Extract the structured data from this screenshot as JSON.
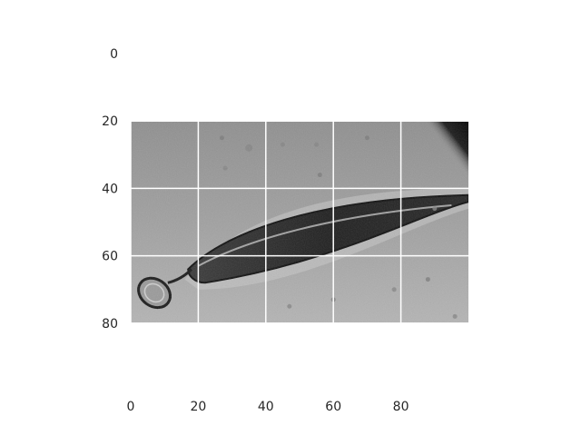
{
  "figure": {
    "kind": "image-plot",
    "colormap": "grayscale",
    "grid": true,
    "grid_color": "#ffffff",
    "background": "#ffffff",
    "text_color": "#262626"
  },
  "x_axis": {
    "range": [
      0,
      100
    ],
    "ticks": [
      {
        "value": 0,
        "label": "0"
      },
      {
        "value": 20,
        "label": "20"
      },
      {
        "value": 40,
        "label": "40"
      },
      {
        "value": 60,
        "label": "60"
      },
      {
        "value": 80,
        "label": "80"
      }
    ]
  },
  "y_axis": {
    "range": [
      0,
      100
    ],
    "inverted": true,
    "ticks": [
      {
        "value": 0,
        "label": "0"
      },
      {
        "value": 20,
        "label": "20"
      },
      {
        "value": 40,
        "label": "40"
      },
      {
        "value": 60,
        "label": "60"
      },
      {
        "value": 80,
        "label": "80"
      }
    ]
  },
  "image": {
    "extent_x": [
      0,
      100
    ],
    "extent_y": [
      20,
      80
    ]
  }
}
